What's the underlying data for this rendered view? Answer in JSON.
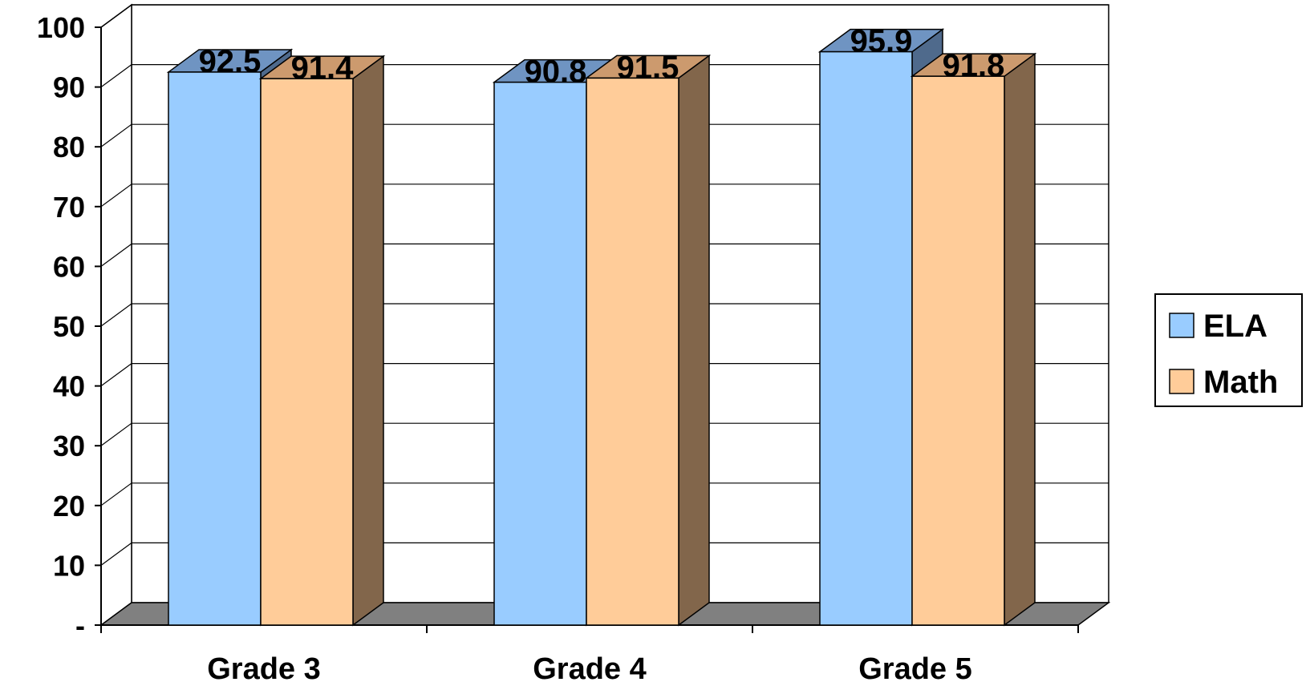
{
  "chart_data": {
    "type": "bar",
    "categories": [
      "Grade 3",
      "Grade 4",
      "Grade 5"
    ],
    "series": [
      {
        "name": "ELA",
        "values": [
          92.5,
          90.8,
          95.9
        ],
        "labels": [
          "92.5",
          "90.8",
          "95.9"
        ],
        "color": "#99ccff"
      },
      {
        "name": "Math",
        "values": [
          91.4,
          91.5,
          91.8
        ],
        "labels": [
          "91.4",
          "91.5",
          "91.8"
        ],
        "color": "#ffcc99"
      }
    ],
    "ylim": [
      0,
      100
    ],
    "yticks": [
      0,
      10,
      20,
      30,
      40,
      50,
      60,
      70,
      80,
      90,
      100
    ],
    "ytick_labels": [
      "-",
      "10",
      "20",
      "30",
      "40",
      "50",
      "60",
      "70",
      "80",
      "90",
      "100"
    ],
    "grid": true,
    "legend_position": "right",
    "three_d": true,
    "colors": {
      "ela_top": "#6f94c2",
      "ela_side": "#4f6a8c",
      "math_top": "#cc9a6e",
      "math_side": "#82664b",
      "floor": "#808080"
    }
  }
}
